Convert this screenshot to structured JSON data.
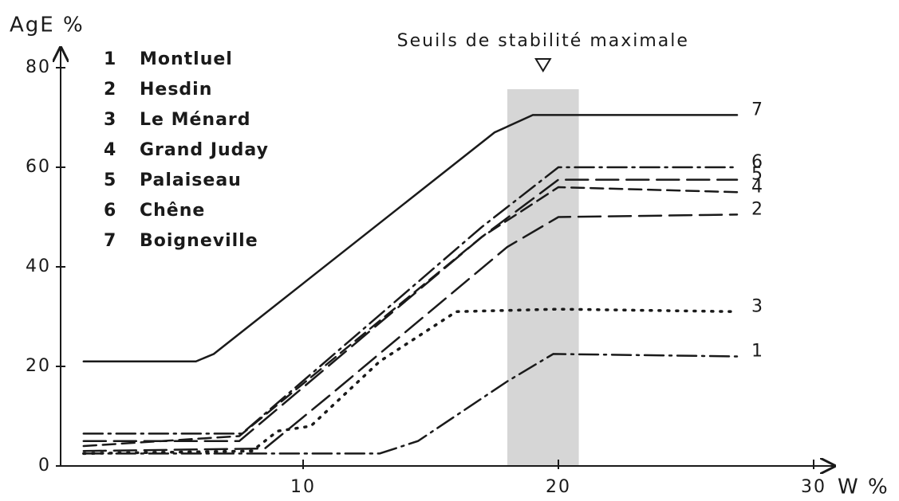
{
  "chart_data": {
    "type": "line",
    "x_label": "W %",
    "y_label": "AgE %",
    "xlim": [
      0.5,
      30.5
    ],
    "ylim": [
      0,
      84
    ],
    "xticks": [
      10,
      20,
      30
    ],
    "yticks": [
      0,
      20,
      40,
      60,
      80
    ],
    "grid": false,
    "highlight": {
      "x": [
        18,
        20.8
      ],
      "label": "Seuils de stabilité maximale"
    },
    "series": [
      {
        "id": "1",
        "name": "Montluel",
        "color": "#1a1a1a",
        "dash": "dashdot",
        "x": [
          1.4,
          13,
          14.5,
          18,
          19.8,
          27
        ],
        "values": [
          2.5,
          2.5,
          5,
          17,
          22.5,
          22
        ]
      },
      {
        "id": "2",
        "name": "Hesdin",
        "color": "#1a1a1a",
        "dash": "longdash",
        "x": [
          1.4,
          8.5,
          11,
          18,
          20,
          27
        ],
        "values": [
          3,
          3.5,
          14,
          44,
          50,
          50.5
        ]
      },
      {
        "id": "3",
        "name": "Le Ménard",
        "color": "#1a1a1a",
        "dash": "dotted",
        "x": [
          1.4,
          8,
          9,
          10.3,
          13,
          16,
          20,
          27
        ],
        "values": [
          2.5,
          3,
          7,
          8,
          21,
          31,
          31.5,
          31
        ]
      },
      {
        "id": "4",
        "name": "Grand Juday",
        "color": "#1a1a1a",
        "dash": "dashed",
        "x": [
          1.4,
          7.5,
          17,
          20,
          27
        ],
        "values": [
          4,
          6,
          46,
          56,
          55
        ]
      },
      {
        "id": "5",
        "name": "Palaiseau",
        "color": "#1a1a1a",
        "dash": "longdash",
        "x": [
          1.4,
          7.5,
          17,
          20,
          27
        ],
        "values": [
          5,
          5,
          46,
          57.5,
          57.5
        ]
      },
      {
        "id": "6",
        "name": "Chêne",
        "color": "#1a1a1a",
        "dash": "dashdot",
        "x": [
          1.4,
          7.6,
          17,
          20,
          27
        ],
        "values": [
          6.5,
          6.5,
          48,
          60,
          60
        ]
      },
      {
        "id": "7",
        "name": "Boigneville",
        "color": "#1a1a1a",
        "dash": "solid",
        "x": [
          1.4,
          5.8,
          6.5,
          17.5,
          19,
          27
        ],
        "values": [
          21,
          21,
          22.5,
          67,
          70.5,
          70.5
        ]
      }
    ]
  }
}
